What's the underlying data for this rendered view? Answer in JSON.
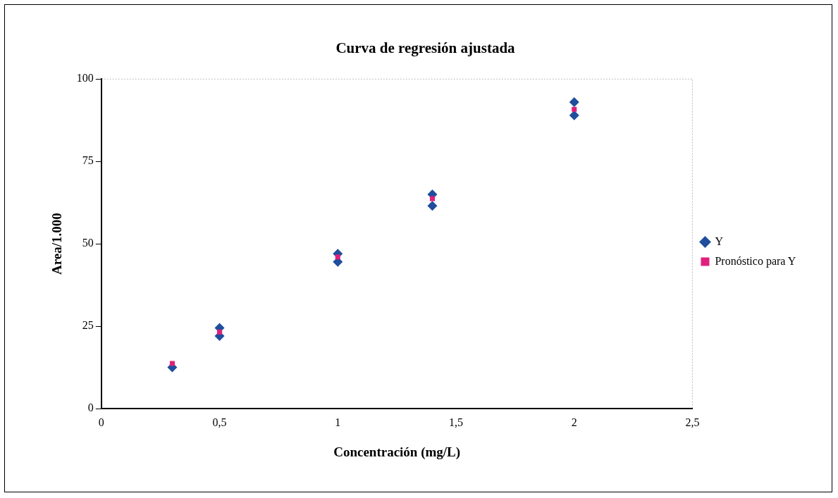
{
  "chart_data": {
    "type": "scatter",
    "title": "Curva de regresión ajustada",
    "xlabel": "Concentración (mg/L)",
    "ylabel": "Area/1.000",
    "xlim": [
      0,
      2.5
    ],
    "xticks": [
      0,
      {
        "value": 0.5,
        "label": "0,5"
      },
      1,
      {
        "value": 1.5,
        "label": "1,5"
      },
      2,
      {
        "value": 2.5,
        "label": "2,5"
      }
    ],
    "ylim": [
      0,
      100
    ],
    "yticks": [
      0,
      25,
      50,
      75,
      100
    ],
    "grid": false,
    "legend": "right",
    "series": [
      {
        "name": "Y",
        "color": "#1f4e9c",
        "marker": "diamond",
        "x": [
          0.3,
          0.5,
          0.5,
          1,
          1,
          1.4,
          1.4,
          2,
          2
        ],
        "values": [
          12.5,
          22,
          24.5,
          44.5,
          47,
          61.5,
          65,
          89,
          93
        ]
      },
      {
        "name": "Pronóstico para Y",
        "color": "#e0207a",
        "marker": "square",
        "x": [
          0.3,
          0.5,
          1,
          1.4,
          2
        ],
        "values": [
          13.7,
          23.2,
          46,
          63.7,
          90.8
        ]
      }
    ]
  }
}
